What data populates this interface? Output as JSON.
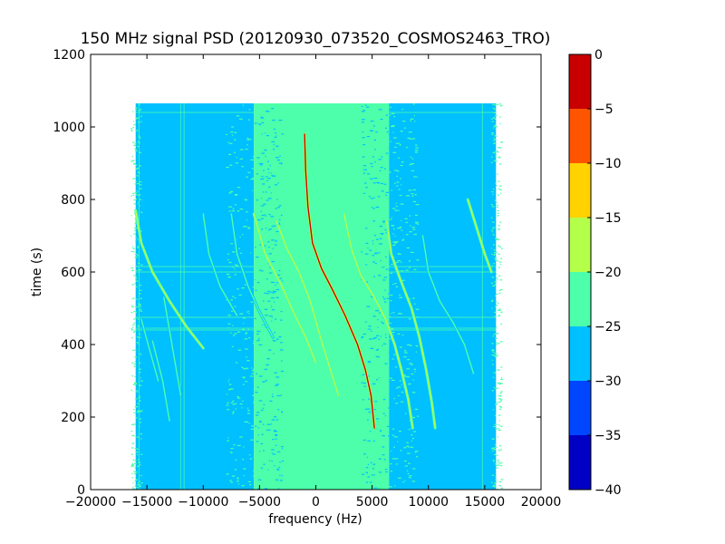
{
  "chart_data": {
    "type": "heatmap",
    "title": "150 MHz signal PSD (20120930_073520_COSMOS2463_TRO)",
    "xlabel": "frequency (Hz)",
    "ylabel": "time (s)",
    "xlim": [
      -20000,
      20000
    ],
    "ylim": [
      0,
      1200
    ],
    "x_ticks": [
      "−20000",
      "−15000",
      "−10000",
      "−5000",
      "0",
      "5000",
      "10000",
      "15000",
      "20000"
    ],
    "y_ticks": [
      "0",
      "200",
      "400",
      "600",
      "800",
      "1000",
      "1200"
    ],
    "data_extent": {
      "x": [
        -16000,
        16000
      ],
      "y": [
        0,
        1065
      ]
    },
    "background_bands": [
      {
        "x": [
          -16000,
          -5500
        ],
        "level": -27
      },
      {
        "x": [
          -5500,
          6500
        ],
        "level": -22
      },
      {
        "x": [
          6500,
          16000
        ],
        "level": -27
      }
    ],
    "series": [
      {
        "points": [
          [
            -1000,
            980
          ],
          [
            -900,
            880
          ],
          [
            -700,
            780
          ],
          [
            -300,
            680
          ],
          [
            500,
            610
          ],
          [
            1500,
            550
          ],
          [
            2600,
            480
          ],
          [
            3700,
            400
          ],
          [
            4400,
            330
          ],
          [
            4900,
            260
          ],
          [
            5200,
            170
          ]
        ],
        "peak_level": -3
      },
      {
        "points": [
          [
            -3500,
            740
          ],
          [
            -2500,
            660
          ],
          [
            -1500,
            600
          ],
          [
            -500,
            520
          ],
          [
            400,
            420
          ],
          [
            1200,
            340
          ],
          [
            2000,
            260
          ]
        ],
        "peak_level": -17
      },
      {
        "points": [
          [
            -5500,
            760
          ],
          [
            -4500,
            650
          ],
          [
            -3000,
            560
          ],
          [
            -2000,
            490
          ],
          [
            -900,
            420
          ],
          [
            0,
            350
          ]
        ],
        "peak_level": -19
      },
      {
        "points": [
          [
            2500,
            760
          ],
          [
            3200,
            660
          ],
          [
            4000,
            590
          ],
          [
            5200,
            530
          ],
          [
            6200,
            470
          ],
          [
            7000,
            400
          ],
          [
            7600,
            330
          ],
          [
            8200,
            250
          ],
          [
            8600,
            170
          ]
        ],
        "peak_level": -17
      },
      {
        "points": [
          [
            6300,
            740
          ],
          [
            6700,
            650
          ],
          [
            7500,
            580
          ],
          [
            8500,
            500
          ],
          [
            9200,
            420
          ],
          [
            9800,
            330
          ],
          [
            10300,
            240
          ],
          [
            10600,
            170
          ]
        ],
        "peak_level": -17
      },
      {
        "points": [
          [
            9500,
            700
          ],
          [
            10000,
            600
          ],
          [
            11000,
            520
          ],
          [
            12200,
            460
          ],
          [
            13200,
            400
          ],
          [
            14000,
            320
          ]
        ],
        "peak_level": -21
      },
      {
        "points": [
          [
            13500,
            800
          ],
          [
            14300,
            720
          ],
          [
            15000,
            650
          ],
          [
            15600,
            600
          ]
        ],
        "peak_level": -20
      },
      {
        "points": [
          [
            -7500,
            760
          ],
          [
            -7000,
            650
          ],
          [
            -6000,
            560
          ],
          [
            -5000,
            490
          ],
          [
            -3800,
            420
          ]
        ],
        "peak_level": -21
      },
      {
        "points": [
          [
            -10000,
            760
          ],
          [
            -9500,
            650
          ],
          [
            -8500,
            560
          ],
          [
            -7000,
            480
          ]
        ],
        "peak_level": -21
      },
      {
        "points": [
          [
            -16000,
            770
          ],
          [
            -15500,
            680
          ],
          [
            -14500,
            600
          ],
          [
            -13000,
            520
          ],
          [
            -11500,
            450
          ],
          [
            -10000,
            390
          ]
        ],
        "peak_level": -20
      },
      {
        "points": [
          [
            -15500,
            470
          ],
          [
            -14800,
            390
          ],
          [
            -14000,
            300
          ]
        ],
        "peak_level": -21
      },
      {
        "points": [
          [
            -13500,
            530
          ],
          [
            -13000,
            440
          ],
          [
            -12500,
            350
          ],
          [
            -12000,
            260
          ]
        ],
        "peak_level": -21
      },
      {
        "points": [
          [
            -14500,
            410
          ],
          [
            -13600,
            300
          ],
          [
            -13000,
            190
          ]
        ],
        "peak_level": -22
      }
    ],
    "colorbar": {
      "range": [
        -40,
        0
      ],
      "ticks": [
        "0",
        "−5",
        "−10",
        "−15",
        "−20",
        "−25",
        "−30",
        "−35",
        "−40"
      ],
      "levels": [
        {
          "from": -40,
          "to": -35,
          "color": "#0000c4"
        },
        {
          "from": -35,
          "to": -30,
          "color": "#0046ff"
        },
        {
          "from": -30,
          "to": -25,
          "color": "#00c0ff"
        },
        {
          "from": -25,
          "to": -20,
          "color": "#4dffaa"
        },
        {
          "from": -20,
          "to": -15,
          "color": "#b4ff4a"
        },
        {
          "from": -15,
          "to": -10,
          "color": "#ffd200"
        },
        {
          "from": -10,
          "to": -5,
          "color": "#ff5500"
        },
        {
          "from": -5,
          "to": 0,
          "color": "#c80000"
        }
      ]
    }
  }
}
